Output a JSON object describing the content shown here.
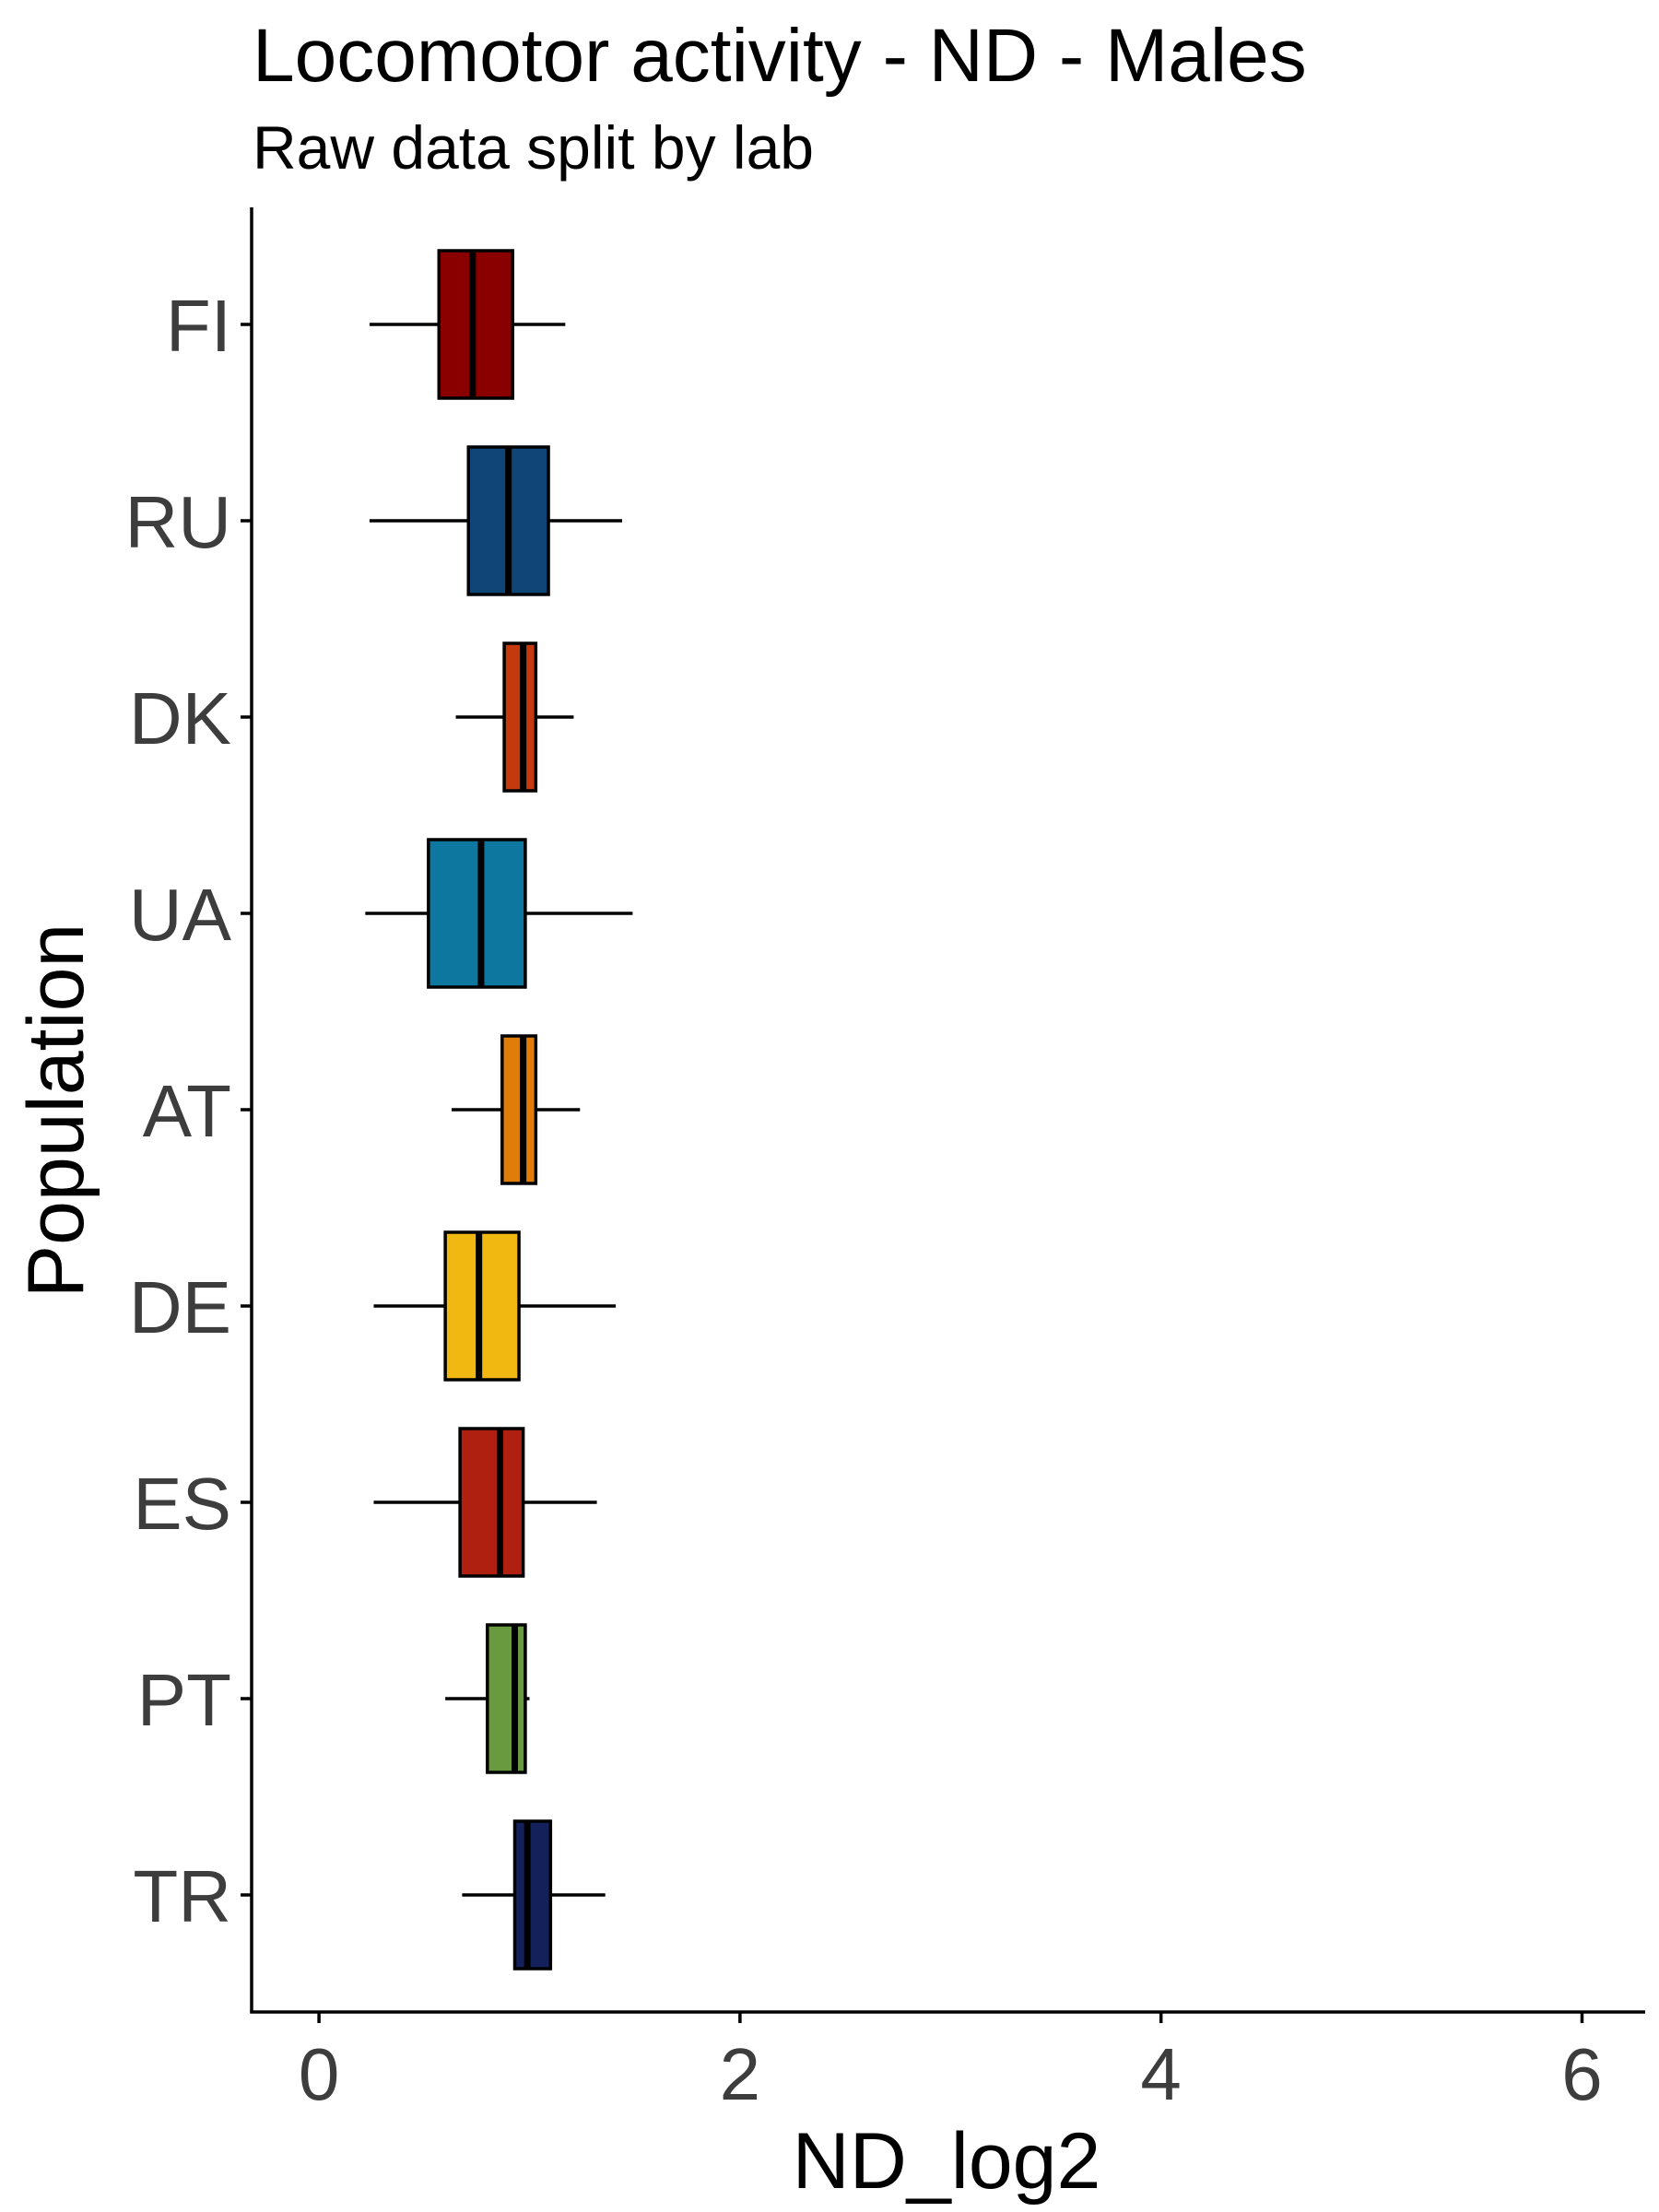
{
  "chart_data": {
    "type": "boxplot",
    "orientation": "horizontal",
    "title": "Locomotor activity - ND - Males",
    "subtitle": "Raw data split by lab",
    "xlabel": "ND_log2",
    "ylabel": "Population",
    "xlim": [
      -0.32,
      6.3
    ],
    "x_ticks": [
      0,
      2,
      4,
      6
    ],
    "grid": false,
    "legend": "none",
    "categories": [
      "FI",
      "RU",
      "DK",
      "UA",
      "AT",
      "DE",
      "ES",
      "PT",
      "TR"
    ],
    "series": [
      {
        "category": "FI",
        "whisker_low": 0.24,
        "q1": 0.57,
        "median": 0.73,
        "q3": 0.92,
        "whisker_high": 1.17,
        "color": "#8a0000"
      },
      {
        "category": "RU",
        "whisker_low": 0.24,
        "q1": 0.71,
        "median": 0.9,
        "q3": 1.09,
        "whisker_high": 1.44,
        "color": "#0f4677"
      },
      {
        "category": "DK",
        "whisker_low": 0.65,
        "q1": 0.88,
        "median": 0.97,
        "q3": 1.03,
        "whisker_high": 1.21,
        "color": "#c43a0e"
      },
      {
        "category": "UA",
        "whisker_low": 0.22,
        "q1": 0.52,
        "median": 0.77,
        "q3": 0.98,
        "whisker_high": 1.49,
        "color": "#0e77a0"
      },
      {
        "category": "AT",
        "whisker_low": 0.63,
        "q1": 0.87,
        "median": 0.97,
        "q3": 1.03,
        "whisker_high": 1.24,
        "color": "#e07d0a"
      },
      {
        "category": "DE",
        "whisker_low": 0.26,
        "q1": 0.6,
        "median": 0.76,
        "q3": 0.95,
        "whisker_high": 1.41,
        "color": "#f0b810"
      },
      {
        "category": "ES",
        "whisker_low": 0.26,
        "q1": 0.67,
        "median": 0.86,
        "q3": 0.97,
        "whisker_high": 1.32,
        "color": "#b02010"
      },
      {
        "category": "PT",
        "whisker_low": 0.6,
        "q1": 0.8,
        "median": 0.93,
        "q3": 0.98,
        "whisker_high": 1.0,
        "color": "#6a9a40"
      },
      {
        "category": "TR",
        "whisker_low": 0.68,
        "q1": 0.93,
        "median": 0.99,
        "q3": 1.1,
        "whisker_high": 1.36,
        "color": "#14205a"
      }
    ]
  }
}
